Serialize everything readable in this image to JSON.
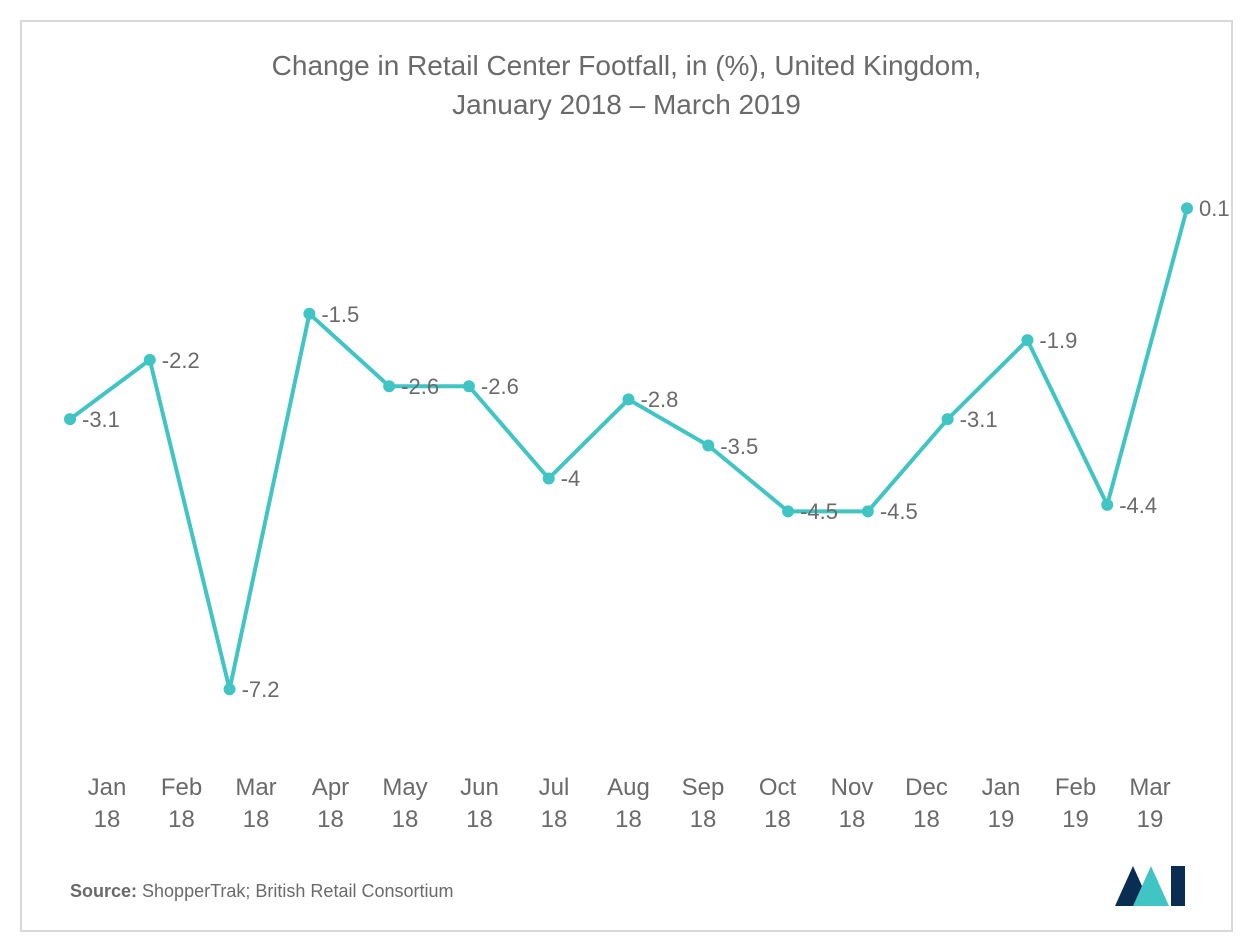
{
  "chart": {
    "type": "line",
    "title_line1": "Change in Retail Center Footfall, in (%), United Kingdom,",
    "title_line2": "January 2018 – March 2019",
    "title_fontsize": 28,
    "title_color": "#6a6a6a",
    "line_color": "#40c4c4",
    "line_width": 4,
    "marker_color": "#40c4c4",
    "marker_radius": 6,
    "background_color": "#ffffff",
    "border_color": "#d8d8d8",
    "label_color": "#6a6a6a",
    "label_fontsize": 22,
    "xlabel_fontsize": 24,
    "ylim_min": -8.0,
    "ylim_max": 0.5,
    "categories": [
      "Jan 18",
      "Feb 18",
      "Mar 18",
      "Apr 18",
      "May 18",
      "Jun 18",
      "Jul 18",
      "Aug 18",
      "Sep 18",
      "Oct 18",
      "Nov 18",
      "Dec 18",
      "Jan 19",
      "Feb 19",
      "Mar 19"
    ],
    "values": [
      -3.1,
      -2.2,
      -7.2,
      -1.5,
      -2.6,
      -2.6,
      -4.0,
      -2.8,
      -3.5,
      -4.5,
      -4.5,
      -3.1,
      -1.9,
      -4.4,
      0.1
    ],
    "value_labels": [
      "-3.1",
      "-2.2",
      "-7.2",
      "-1.5",
      "-2.6",
      "-2.6",
      "-4",
      "-2.8",
      "-3.5",
      "-4.5",
      "-4.5",
      "-3.1",
      "-1.9",
      "-4.4",
      "0.1"
    ]
  },
  "source_prefix": "Source:",
  "source_text": " ShopperTrak; British Retail Consortium",
  "logo_colors": {
    "dark": "#0a2d52",
    "teal": "#40c4c4"
  }
}
